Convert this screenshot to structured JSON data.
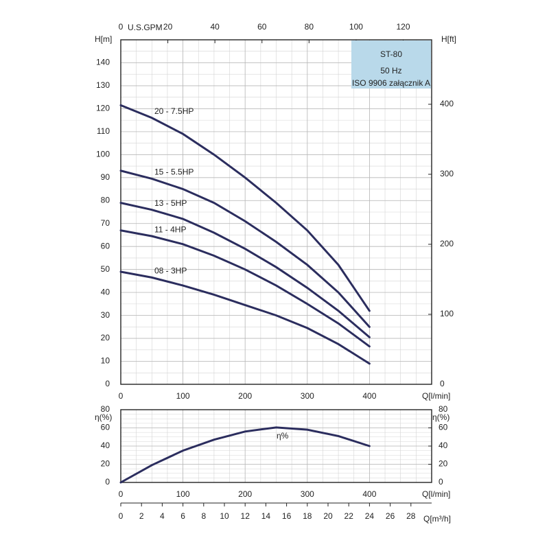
{
  "chart_data": [
    {
      "type": "line",
      "x_label": "Q[l/min]",
      "y_label": "H[m]",
      "y2_label": "H[ft]",
      "x2_label": "U.S.GPM",
      "xlim": [
        0,
        500
      ],
      "xticks": [
        0,
        100,
        200,
        300,
        400
      ],
      "ylim": [
        0,
        150
      ],
      "yticks": [
        0,
        10,
        20,
        30,
        40,
        50,
        60,
        70,
        80,
        90,
        100,
        110,
        120,
        130,
        140
      ],
      "y2lim": [
        0,
        492.1
      ],
      "y2ticks": [
        0,
        100,
        200,
        300,
        400
      ],
      "x2lim": [
        0,
        132.1
      ],
      "x2ticks": [
        0,
        20,
        40,
        60,
        80,
        100,
        120
      ],
      "grid": true,
      "annotation_box": {
        "title": "ST-80",
        "subtitle": "50 Hz",
        "note": "ISO 9906 załącznik A",
        "color": "#b9d9ea"
      },
      "x": [
        0,
        50,
        100,
        150,
        200,
        250,
        300,
        350,
        400
      ],
      "series": [
        {
          "name": "20 - 7.5HP",
          "color": "#2b2d5e",
          "values": [
            121.5,
            116,
            109,
            100,
            90,
            79,
            67,
            52,
            32
          ]
        },
        {
          "name": "15 - 5.5HP",
          "color": "#2b2d5e",
          "values": [
            93,
            89.5,
            85,
            79,
            71,
            62,
            52,
            40,
            25
          ]
        },
        {
          "name": "13 - 5HP",
          "color": "#2b2d5e",
          "values": [
            79,
            76,
            72,
            66,
            59,
            51,
            42,
            32,
            20.5
          ]
        },
        {
          "name": "11 - 4HP",
          "color": "#2b2d5e",
          "values": [
            67,
            64.5,
            61,
            56,
            50,
            43,
            35,
            26.5,
            16.5
          ]
        },
        {
          "name": "08 - 3HP",
          "color": "#2b2d5e",
          "values": [
            49,
            46.5,
            43,
            39,
            34.5,
            30,
            24.5,
            17.5,
            9
          ]
        }
      ]
    },
    {
      "type": "line",
      "x_label": "Q[l/min]",
      "y_label": "η(%)",
      "y2_label": "η(%)",
      "x2_label": "Q[m³/h]",
      "xlim": [
        0,
        500
      ],
      "xticks": [
        0,
        100,
        200,
        300,
        400
      ],
      "ylim": [
        0,
        80
      ],
      "yticks": [
        0,
        20,
        40,
        60,
        80
      ],
      "y2lim": [
        0,
        80
      ],
      "y2ticks": [
        0,
        20,
        40,
        60,
        80
      ],
      "x2lim": [
        0,
        30
      ],
      "x2ticks": [
        0,
        2,
        4,
        6,
        8,
        10,
        12,
        14,
        16,
        18,
        20,
        22,
        24,
        26,
        28
      ],
      "grid": true,
      "x": [
        0,
        50,
        100,
        150,
        200,
        250,
        300,
        350,
        400
      ],
      "series": [
        {
          "name": "η%",
          "color": "#2b2d5e",
          "values": [
            0,
            19,
            35,
            47,
            56,
            60.5,
            58,
            51,
            40
          ]
        }
      ]
    }
  ]
}
